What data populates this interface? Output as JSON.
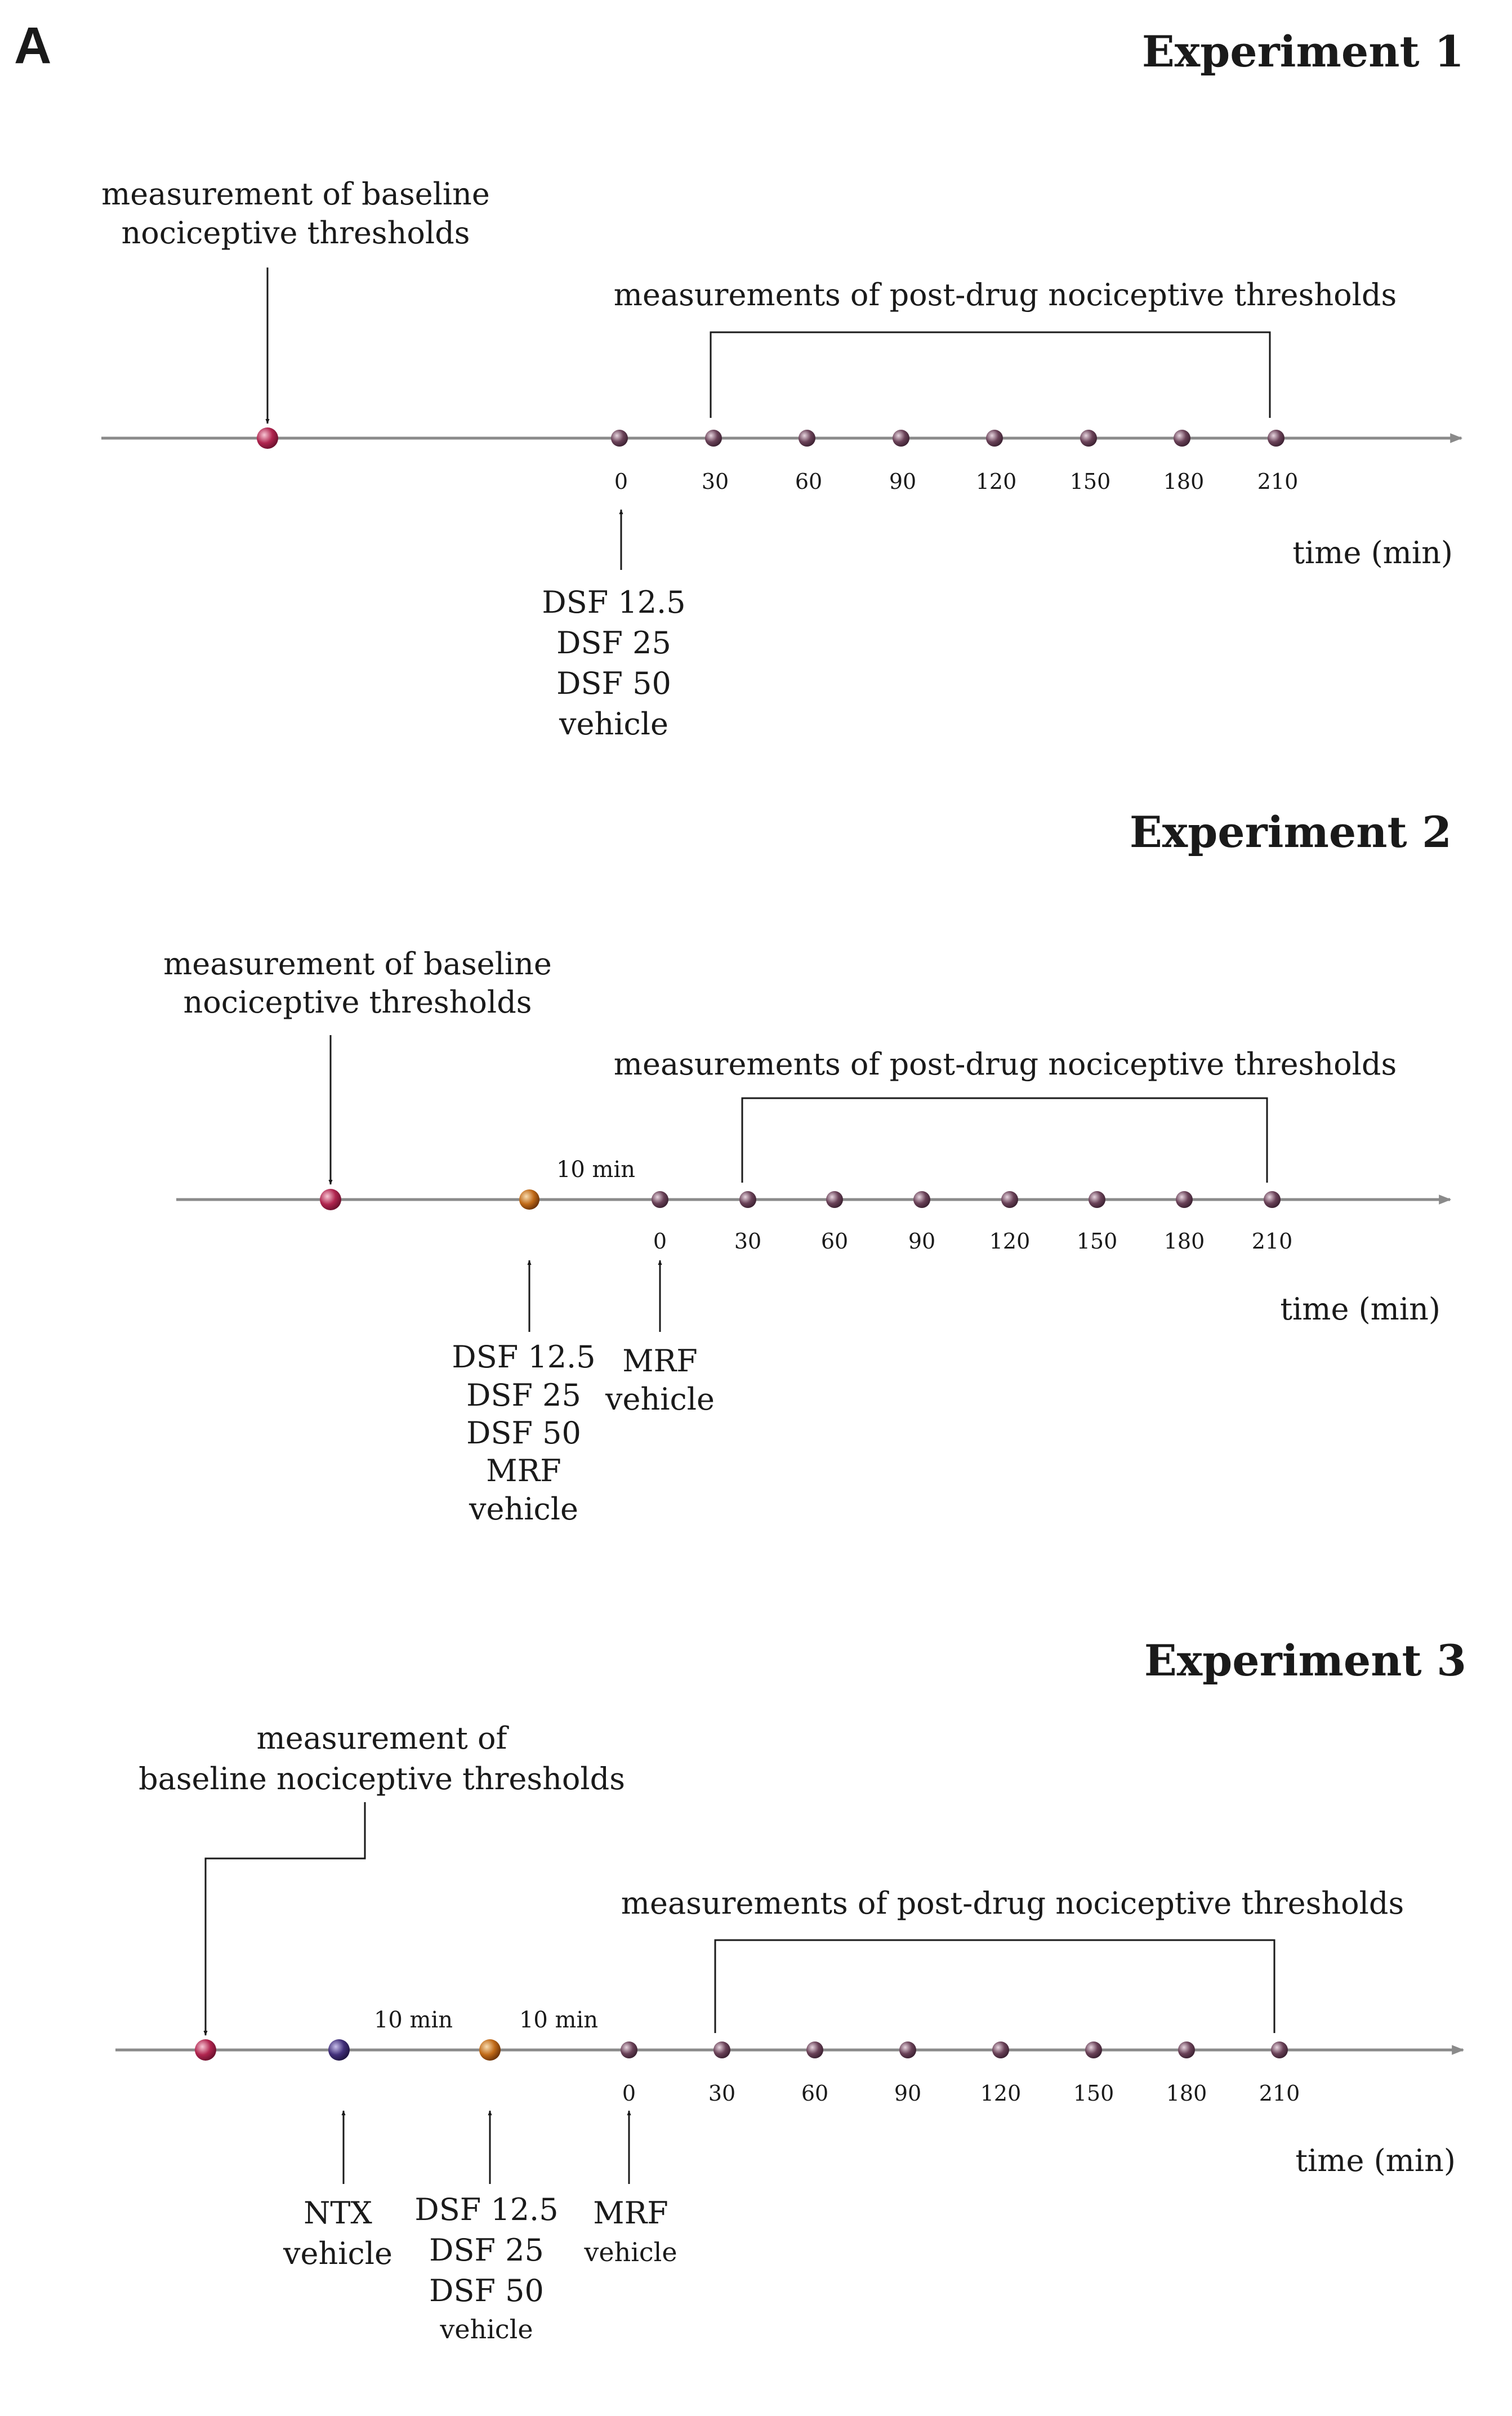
{
  "panel_label": "A",
  "time_axis_label": "time (min)",
  "baseline_label": [
    "measurement of baseline",
    "nociceptive thresholds"
  ],
  "post_drug_label": "measurements of post-drug nociceptive thresholds",
  "interval_label": "10 min",
  "time_ticks": [
    "0",
    "30",
    "60",
    "90",
    "120",
    "150",
    "180",
    "210"
  ],
  "colors": {
    "baseline_marker": "#a8204a",
    "tick_marker": "#5a3548",
    "pretreatment_marker": "#b86418",
    "ntx_marker": "#3a2a6a",
    "axis_line": "#8a8a8a"
  },
  "experiments": [
    {
      "title": "Experiment 1",
      "baseline_label": [
        "measurement of baseline",
        "nociceptive thresholds"
      ],
      "treatments": [
        {
          "time": "0",
          "labels": [
            "DSF 12.5",
            "DSF 25",
            "DSF 50",
            "vehicle"
          ]
        }
      ]
    },
    {
      "title": "Experiment 2",
      "baseline_label": [
        "measurement of baseline",
        "nociceptive thresholds"
      ],
      "treatments": [
        {
          "time": "-10 min",
          "labels": [
            "DSF 12.5",
            "DSF 25",
            "DSF 50",
            "MRF",
            "vehicle"
          ]
        },
        {
          "time": "0",
          "labels": [
            "MRF",
            "vehicle"
          ]
        }
      ]
    },
    {
      "title": "Experiment 3",
      "baseline_label": [
        "measurement of",
        "baseline nociceptive thresholds"
      ],
      "treatments": [
        {
          "time": "-20 min",
          "labels": [
            "NTX",
            "vehicle"
          ]
        },
        {
          "time": "-10 min",
          "labels": [
            "DSF 12.5",
            "DSF 25",
            "DSF 50",
            "vehicle"
          ]
        },
        {
          "time": "0",
          "labels": [
            "MRF",
            "vehicle"
          ]
        }
      ]
    }
  ]
}
